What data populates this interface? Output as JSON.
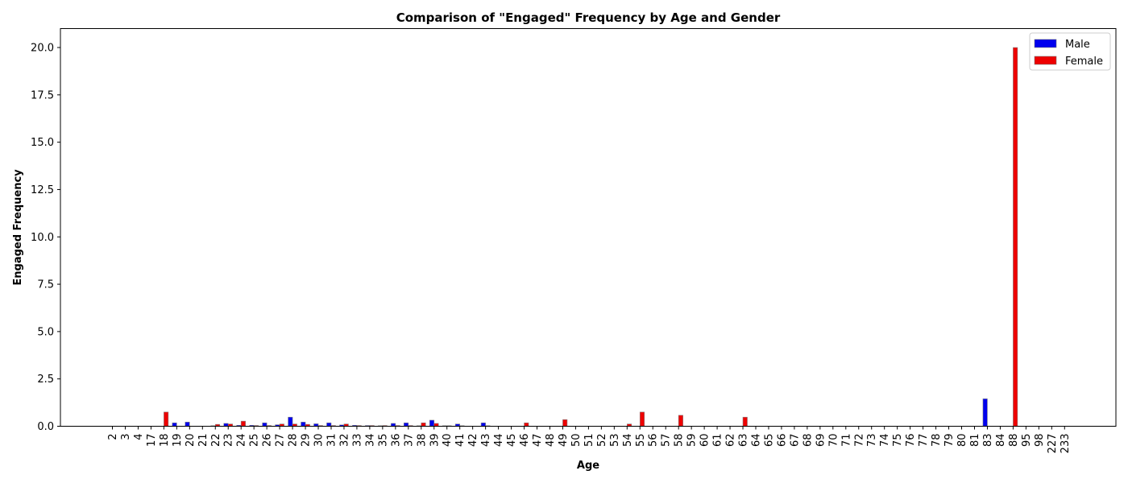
{
  "chart_data": {
    "type": "bar",
    "title": "Comparison of \"Engaged\" Frequency by Age and Gender",
    "xlabel": "Age",
    "ylabel": "Engaged Frequency",
    "ylim": [
      0,
      21
    ],
    "yticks": [
      "0.0",
      "2.5",
      "5.0",
      "7.5",
      "10.0",
      "12.5",
      "15.0",
      "17.5",
      "20.0"
    ],
    "grid": false,
    "legend_position": "top-right",
    "categories": [
      "2",
      "3",
      "4",
      "17",
      "18",
      "19",
      "20",
      "21",
      "22",
      "23",
      "24",
      "25",
      "26",
      "27",
      "28",
      "29",
      "30",
      "31",
      "32",
      "33",
      "34",
      "35",
      "36",
      "37",
      "38",
      "39",
      "40",
      "41",
      "42",
      "43",
      "44",
      "45",
      "46",
      "47",
      "48",
      "49",
      "50",
      "51",
      "52",
      "53",
      "54",
      "55",
      "56",
      "57",
      "58",
      "59",
      "60",
      "61",
      "62",
      "63",
      "64",
      "65",
      "66",
      "67",
      "68",
      "69",
      "70",
      "71",
      "72",
      "73",
      "74",
      "75",
      "76",
      "77",
      "78",
      "79",
      "80",
      "81",
      "83",
      "84",
      "88",
      "95",
      "98",
      "227",
      "233"
    ],
    "series": [
      {
        "name": "Male",
        "color": "#0000ee",
        "values": [
          0,
          0,
          0,
          0,
          0,
          0.18,
          0.22,
          0,
          0.03,
          0.15,
          0.05,
          0.05,
          0.18,
          0.08,
          0.48,
          0.22,
          0.13,
          0.18,
          0.07,
          0.05,
          0.04,
          0.03,
          0.15,
          0.18,
          0.03,
          0.32,
          0.03,
          0.12,
          0,
          0.18,
          0,
          0,
          0,
          0,
          0,
          0,
          0,
          0,
          0,
          0,
          0,
          0,
          0,
          0,
          0,
          0,
          0,
          0,
          0,
          0,
          0,
          0,
          0,
          0,
          0,
          0,
          0,
          0,
          0,
          0,
          0,
          0,
          0,
          0,
          0,
          0,
          0,
          0,
          1.45,
          0,
          0,
          0,
          0,
          0,
          0
        ]
      },
      {
        "name": "Female",
        "color": "#ee0000",
        "values": [
          0,
          0,
          0,
          0,
          0.75,
          0,
          0,
          0,
          0.1,
          0.12,
          0.27,
          0.04,
          0.04,
          0.12,
          0.12,
          0.1,
          0.04,
          0.04,
          0.12,
          0.04,
          0.04,
          0.04,
          0.04,
          0.04,
          0.18,
          0.15,
          0.03,
          0.03,
          0,
          0.03,
          0,
          0,
          0.18,
          0,
          0,
          0.35,
          0,
          0,
          0,
          0,
          0.12,
          0.75,
          0,
          0,
          0.58,
          0,
          0,
          0,
          0,
          0.48,
          0,
          0,
          0,
          0,
          0,
          0,
          0,
          0,
          0,
          0,
          0,
          0,
          0,
          0,
          0,
          0,
          0,
          0,
          0,
          0,
          20,
          0,
          0,
          0,
          0
        ]
      }
    ]
  }
}
